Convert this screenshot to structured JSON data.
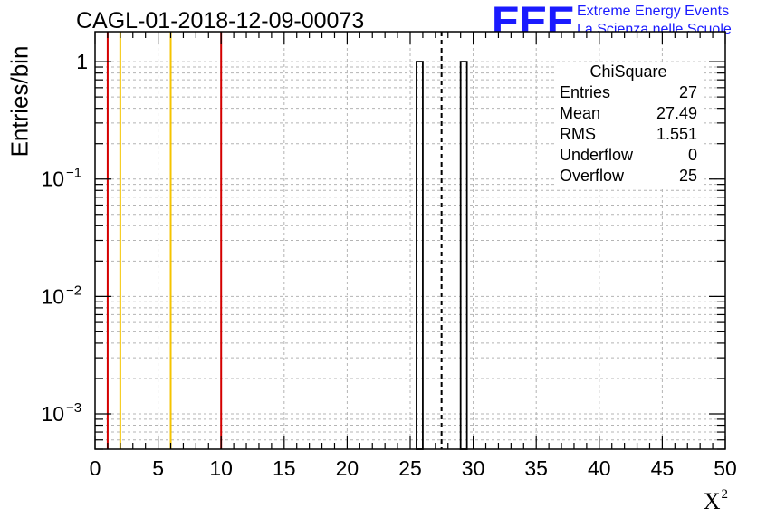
{
  "title": "CAGL-01-2018-12-09-00073",
  "logo": {
    "mark": "EEE",
    "line1": "Extreme Energy Events",
    "line2": "La Scienza nelle Scuole"
  },
  "colors": {
    "threshold_red": "#d40000",
    "threshold_yellow": "#f5c400",
    "grid": "#b4b4b4",
    "logo_blue": "#1a1aff"
  },
  "stats_box": {
    "title": "ChiSquare",
    "rows": [
      {
        "key": "Entries",
        "value": "27"
      },
      {
        "key": "Mean",
        "value": "27.49"
      },
      {
        "key": "RMS",
        "value": "1.551"
      },
      {
        "key": "Underflow",
        "value": "0"
      },
      {
        "key": "Overflow",
        "value": "25"
      }
    ]
  },
  "chart_data": {
    "type": "bar",
    "title": "CAGL-01-2018-12-09-00073",
    "xlabel": "X",
    "xlabel_superscript": "2",
    "ylabel": "Entries/bin",
    "xlim": [
      0,
      50
    ],
    "ylim": [
      0.0005,
      1.8
    ],
    "y_scale": "log",
    "grid": true,
    "x_ticks": [
      "0",
      "5",
      "10",
      "15",
      "20",
      "25",
      "30",
      "35",
      "40",
      "45",
      "50"
    ],
    "y_ticks": [
      {
        "value": 1,
        "mantissa": "1",
        "exponent": ""
      },
      {
        "value": 0.1,
        "mantissa": "10",
        "exponent": "−1"
      },
      {
        "value": 0.01,
        "mantissa": "10",
        "exponent": "−2"
      },
      {
        "value": 0.001,
        "mantissa": "10",
        "exponent": "−3"
      }
    ],
    "bin_width": 0.5,
    "bins": [
      {
        "x_low": 25.5,
        "x_high": 26.0,
        "value": 1
      },
      {
        "x_low": 29.0,
        "x_high": 29.5,
        "value": 1
      }
    ],
    "reference_lines": [
      {
        "x": 1,
        "color": "#d40000",
        "style": "solid"
      },
      {
        "x": 2,
        "color": "#f5c400",
        "style": "solid"
      },
      {
        "x": 6,
        "color": "#f5c400",
        "style": "solid"
      },
      {
        "x": 10,
        "color": "#d40000",
        "style": "solid"
      },
      {
        "x": 27.49,
        "color": "#000000",
        "style": "dashed"
      }
    ],
    "legend": "top-right"
  }
}
